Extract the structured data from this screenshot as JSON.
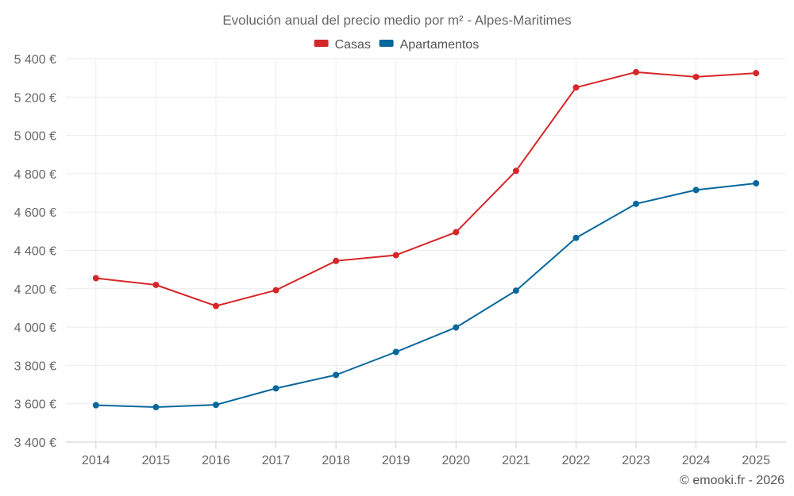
{
  "chart_data": {
    "type": "line",
    "title": "Evolución anual del precio medio por m² - Alpes-Maritimes",
    "categories": [
      "2014",
      "2015",
      "2016",
      "2017",
      "2018",
      "2019",
      "2020",
      "2021",
      "2022",
      "2023",
      "2024",
      "2025"
    ],
    "series": [
      {
        "name": "Casas",
        "color": "#d62728",
        "values": [
          4255,
          4220,
          4110,
          4192,
          4345,
          4375,
          4495,
          4815,
          5250,
          5330,
          5305,
          5325
        ]
      },
      {
        "name": "Apartamentos",
        "color": "#08679c",
        "values": [
          3592,
          3582,
          3594,
          3680,
          3750,
          3870,
          3998,
          4190,
          4465,
          4643,
          4715,
          4750
        ]
      }
    ],
    "ylim": [
      3400,
      5400
    ],
    "yticks": [
      3400,
      3600,
      3800,
      4000,
      4200,
      4400,
      4600,
      4800,
      5000,
      5200,
      5400
    ],
    "ytick_labels": [
      "3 400 €",
      "3 600 €",
      "3 800 €",
      "4 000 €",
      "4 200 €",
      "4 400 €",
      "4 600 €",
      "4 800 €",
      "5 000 €",
      "5 200 €",
      "5 400 €"
    ],
    "xlabel": "",
    "ylabel": "",
    "grid": true,
    "legend_position": "top-center"
  },
  "credit": "© emooki.fr - 2026"
}
